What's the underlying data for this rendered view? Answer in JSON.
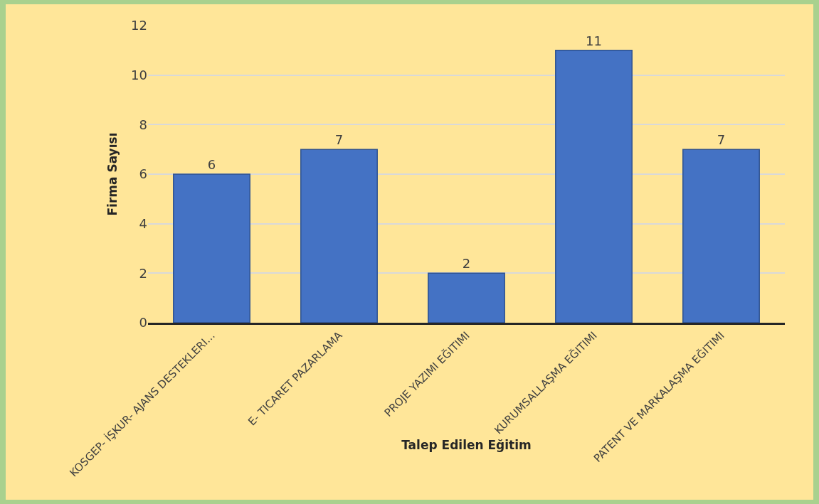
{
  "chart_data": {
    "type": "bar",
    "xlabel": "Talep Edilen Eğitim",
    "ylabel": "Firma Sayısı",
    "categories": [
      "KOSGEP- İŞKUR- AJANS DESTEKLERI...",
      "E- TICARET PAZARLAMA",
      "PROJE YAZIMI EĞITIMI",
      "KURUMSALLAŞMA EĞITIMI",
      "PATENT VE MARKALAŞMA EĞITIMI"
    ],
    "values": [
      6,
      7,
      2,
      11,
      7
    ],
    "color": "#4472c4",
    "ylim": [
      0,
      12
    ],
    "yticks": [
      0,
      2,
      4,
      6,
      8,
      10,
      12
    ],
    "grid": "y",
    "data_labels": true
  }
}
